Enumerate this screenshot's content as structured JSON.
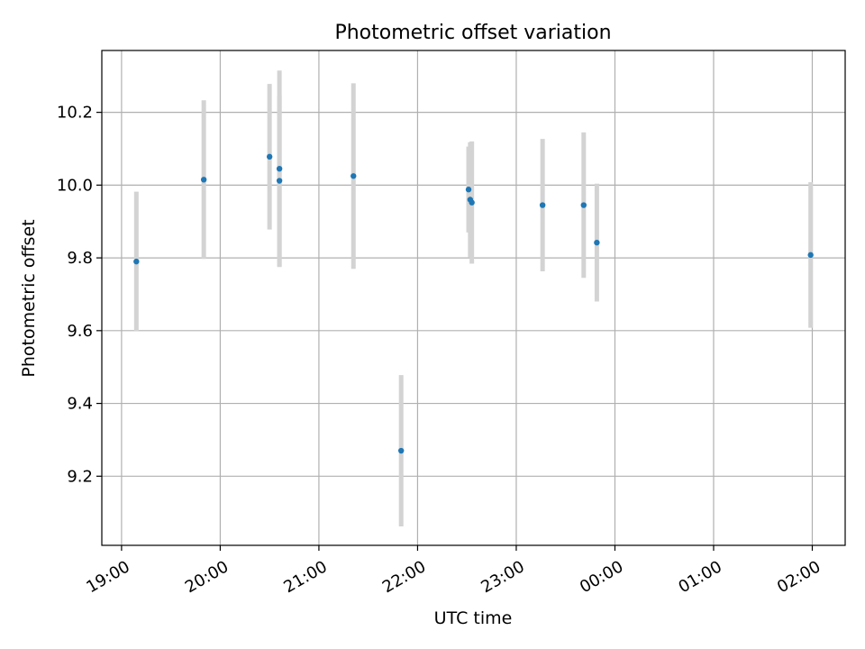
{
  "chart_data": {
    "type": "scatter",
    "title": "Photometric offset variation",
    "xlabel": "UTC time",
    "ylabel": "Photometric offset",
    "xlim": [
      "18:48",
      "02:20"
    ],
    "ylim": [
      9.01,
      10.37
    ],
    "grid": true,
    "x_ticks": [
      "19:00",
      "20:00",
      "21:00",
      "22:00",
      "23:00",
      "00:00",
      "01:00",
      "02:00"
    ],
    "y_ticks": [
      9.2,
      9.4,
      9.6,
      9.8,
      10.0,
      10.2
    ],
    "y_tick_labels": [
      "9.2",
      "9.4",
      "9.6",
      "9.8",
      "10.0",
      "10.2"
    ],
    "series": [
      {
        "x": [
          "19:09",
          "19:50",
          "20:30",
          "20:36",
          "20:36",
          "21:21",
          "21:50",
          "22:31",
          "22:32",
          "22:33",
          "23:16",
          "23:41",
          "23:49",
          "01:59"
        ],
        "y": [
          9.79,
          10.015,
          10.078,
          10.045,
          10.012,
          10.025,
          9.27,
          9.988,
          9.96,
          9.952,
          9.945,
          9.945,
          9.842,
          9.808
        ],
        "err": [
          0.192,
          0.218,
          0.2,
          0.27,
          0.235,
          0.255,
          0.208,
          0.118,
          0.158,
          0.168,
          0.182,
          0.2,
          0.162,
          0.2
        ]
      }
    ],
    "colors": {
      "point": "#1f77b4",
      "errorbar": "#d3d3d3",
      "grid": "#b0b0b0"
    }
  }
}
